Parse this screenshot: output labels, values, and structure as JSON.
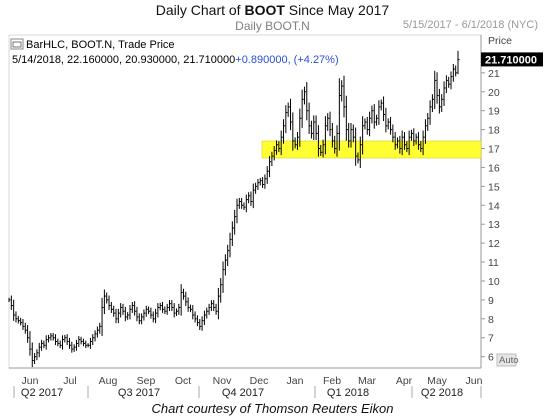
{
  "header": {
    "title_prefix": "Daily Chart of ",
    "title_bold": "BOOT",
    "title_suffix": " Since May 2017",
    "subtitle": "Daily BOOT.N",
    "date_range": "5/15/2017 - 6/1/2018 (NYC)"
  },
  "legend": {
    "line1": "BarHLC, BOOT.N, Trade Price",
    "line2_values": "5/14/2018, 22.160000, 20.930000, 21.710000",
    "line2_change": "+0.890000, (+4.27%)"
  },
  "price_axis_title": "Price",
  "last_price_label": "21.710000",
  "auto_button": "Auto",
  "footer": "Chart courtesy of Thomson Reuters Eikon",
  "colors": {
    "bars": "#000000",
    "highlight_band": "#ffff33",
    "change_text": "#2b4fd8",
    "last_price_bg": "#000000"
  },
  "icons": {
    "window_toggle": "window-toggle-icon"
  },
  "chart_data": {
    "type": "bar",
    "style": "HLC bars",
    "symbol": "BOOT.N",
    "xlabel": "",
    "ylabel": "Price",
    "ylim": [
      5.4,
      23.0
    ],
    "yticks": [
      6,
      7,
      8,
      9,
      10,
      11,
      12,
      13,
      14,
      15,
      16,
      17,
      18,
      19,
      20,
      21
    ],
    "months": [
      "Jun",
      "Jul",
      "Aug",
      "Sep",
      "Oct",
      "Nov",
      "Dec",
      "Jan",
      "Feb",
      "Mar",
      "Apr",
      "May",
      "Jun"
    ],
    "quarters": [
      "Q2 2017",
      "Q3 2017",
      "Q4 2017",
      "Q1 2018",
      "Q2 2018"
    ],
    "support_zone": [
      16.5,
      17.4
    ],
    "last_bar": {
      "date": "5/14/2018",
      "high": 22.16,
      "low": 20.93,
      "close": 21.71,
      "change": 0.89,
      "change_pct": 4.27
    },
    "approx_closes": [
      9.0,
      8.7,
      8.2,
      8.0,
      7.9,
      7.8,
      7.6,
      7.4,
      7.0,
      6.4,
      5.8,
      6.0,
      6.2,
      6.5,
      6.7,
      6.6,
      6.9,
      7.0,
      7.1,
      7.0,
      6.8,
      6.7,
      6.6,
      6.9,
      7.0,
      6.8,
      6.6,
      6.4,
      6.5,
      6.7,
      6.9,
      6.8,
      6.7,
      6.6,
      6.6,
      6.8,
      7.0,
      7.2,
      7.4,
      7.6,
      8.6,
      9.2,
      9.0,
      8.7,
      8.5,
      8.3,
      8.0,
      8.3,
      8.6,
      8.4,
      8.1,
      8.2,
      8.5,
      8.7,
      8.4,
      8.1,
      7.9,
      8.1,
      8.3,
      8.5,
      8.4,
      8.2,
      8.0,
      8.3,
      8.6,
      8.7,
      8.5,
      8.4,
      8.6,
      8.8,
      8.6,
      8.3,
      8.4,
      8.6,
      9.4,
      9.2,
      8.9,
      8.6,
      8.5,
      8.2,
      8.0,
      7.8,
      7.6,
      7.9,
      8.2,
      8.4,
      8.6,
      8.8,
      8.6,
      8.4,
      9.2,
      9.8,
      10.6,
      11.1,
      11.6,
      12.2,
      12.8,
      13.4,
      14.0,
      14.2,
      14.0,
      13.9,
      14.3,
      14.5,
      14.2,
      14.8,
      15.0,
      15.2,
      15.3,
      15.1,
      15.4,
      15.8,
      16.3,
      16.6,
      16.9,
      17.2,
      17.0,
      17.6,
      18.2,
      18.9,
      19.2,
      18.4,
      17.4,
      17.2,
      17.6,
      18.6,
      19.6,
      20.0,
      19.0,
      18.2,
      17.8,
      18.4,
      17.8,
      17.0,
      16.8,
      17.2,
      18.2,
      18.6,
      18.0,
      17.4,
      17.0,
      17.8,
      19.8,
      20.3,
      19.2,
      18.0,
      17.4,
      18.0,
      17.6,
      16.6,
      16.4,
      17.2,
      18.2,
      18.4,
      18.0,
      18.6,
      19.0,
      18.4,
      18.6,
      19.2,
      19.4,
      18.8,
      18.2,
      18.4,
      18.0,
      17.6,
      17.2,
      17.4,
      17.0,
      17.6,
      17.2,
      17.0,
      17.6,
      17.8,
      17.4,
      17.6,
      17.2,
      17.0,
      17.6,
      18.2,
      18.6,
      19.2,
      19.6,
      20.6,
      19.8,
      19.2,
      19.6,
      20.2,
      20.6,
      20.4,
      20.8,
      21.2,
      21.0,
      21.7
    ]
  }
}
